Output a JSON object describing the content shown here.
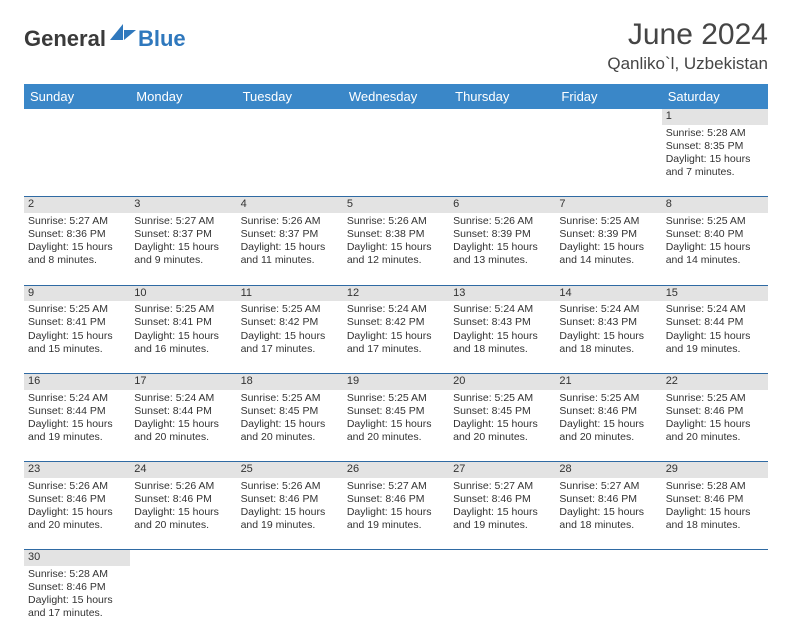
{
  "logo": {
    "text1": "General",
    "text2": "Blue",
    "text1_color": "#3a3a3a",
    "text2_color": "#2f78bd",
    "shape_color": "#2f78bd"
  },
  "header": {
    "month": "June 2024",
    "location": "Qanliko`l, Uzbekistan"
  },
  "colors": {
    "header_bg": "#3a87c8",
    "header_text": "#ffffff",
    "daynum_bg": "#e3e3e3",
    "row_divider": "#2f6aa3",
    "body_text": "#333333"
  },
  "calendar": {
    "weekdays": [
      "Sunday",
      "Monday",
      "Tuesday",
      "Wednesday",
      "Thursday",
      "Friday",
      "Saturday"
    ],
    "weeks": [
      {
        "nums": [
          "",
          "",
          "",
          "",
          "",
          "",
          "1"
        ],
        "cells": [
          [],
          [],
          [],
          [],
          [],
          [],
          [
            "Sunrise: 5:28 AM",
            "Sunset: 8:35 PM",
            "Daylight: 15 hours",
            "and 7 minutes."
          ]
        ]
      },
      {
        "nums": [
          "2",
          "3",
          "4",
          "5",
          "6",
          "7",
          "8"
        ],
        "cells": [
          [
            "Sunrise: 5:27 AM",
            "Sunset: 8:36 PM",
            "Daylight: 15 hours",
            "and 8 minutes."
          ],
          [
            "Sunrise: 5:27 AM",
            "Sunset: 8:37 PM",
            "Daylight: 15 hours",
            "and 9 minutes."
          ],
          [
            "Sunrise: 5:26 AM",
            "Sunset: 8:37 PM",
            "Daylight: 15 hours",
            "and 11 minutes."
          ],
          [
            "Sunrise: 5:26 AM",
            "Sunset: 8:38 PM",
            "Daylight: 15 hours",
            "and 12 minutes."
          ],
          [
            "Sunrise: 5:26 AM",
            "Sunset: 8:39 PM",
            "Daylight: 15 hours",
            "and 13 minutes."
          ],
          [
            "Sunrise: 5:25 AM",
            "Sunset: 8:39 PM",
            "Daylight: 15 hours",
            "and 14 minutes."
          ],
          [
            "Sunrise: 5:25 AM",
            "Sunset: 8:40 PM",
            "Daylight: 15 hours",
            "and 14 minutes."
          ]
        ]
      },
      {
        "nums": [
          "9",
          "10",
          "11",
          "12",
          "13",
          "14",
          "15"
        ],
        "cells": [
          [
            "Sunrise: 5:25 AM",
            "Sunset: 8:41 PM",
            "Daylight: 15 hours",
            "and 15 minutes."
          ],
          [
            "Sunrise: 5:25 AM",
            "Sunset: 8:41 PM",
            "Daylight: 15 hours",
            "and 16 minutes."
          ],
          [
            "Sunrise: 5:25 AM",
            "Sunset: 8:42 PM",
            "Daylight: 15 hours",
            "and 17 minutes."
          ],
          [
            "Sunrise: 5:24 AM",
            "Sunset: 8:42 PM",
            "Daylight: 15 hours",
            "and 17 minutes."
          ],
          [
            "Sunrise: 5:24 AM",
            "Sunset: 8:43 PM",
            "Daylight: 15 hours",
            "and 18 minutes."
          ],
          [
            "Sunrise: 5:24 AM",
            "Sunset: 8:43 PM",
            "Daylight: 15 hours",
            "and 18 minutes."
          ],
          [
            "Sunrise: 5:24 AM",
            "Sunset: 8:44 PM",
            "Daylight: 15 hours",
            "and 19 minutes."
          ]
        ]
      },
      {
        "nums": [
          "16",
          "17",
          "18",
          "19",
          "20",
          "21",
          "22"
        ],
        "cells": [
          [
            "Sunrise: 5:24 AM",
            "Sunset: 8:44 PM",
            "Daylight: 15 hours",
            "and 19 minutes."
          ],
          [
            "Sunrise: 5:24 AM",
            "Sunset: 8:44 PM",
            "Daylight: 15 hours",
            "and 20 minutes."
          ],
          [
            "Sunrise: 5:25 AM",
            "Sunset: 8:45 PM",
            "Daylight: 15 hours",
            "and 20 minutes."
          ],
          [
            "Sunrise: 5:25 AM",
            "Sunset: 8:45 PM",
            "Daylight: 15 hours",
            "and 20 minutes."
          ],
          [
            "Sunrise: 5:25 AM",
            "Sunset: 8:45 PM",
            "Daylight: 15 hours",
            "and 20 minutes."
          ],
          [
            "Sunrise: 5:25 AM",
            "Sunset: 8:46 PM",
            "Daylight: 15 hours",
            "and 20 minutes."
          ],
          [
            "Sunrise: 5:25 AM",
            "Sunset: 8:46 PM",
            "Daylight: 15 hours",
            "and 20 minutes."
          ]
        ]
      },
      {
        "nums": [
          "23",
          "24",
          "25",
          "26",
          "27",
          "28",
          "29"
        ],
        "cells": [
          [
            "Sunrise: 5:26 AM",
            "Sunset: 8:46 PM",
            "Daylight: 15 hours",
            "and 20 minutes."
          ],
          [
            "Sunrise: 5:26 AM",
            "Sunset: 8:46 PM",
            "Daylight: 15 hours",
            "and 20 minutes."
          ],
          [
            "Sunrise: 5:26 AM",
            "Sunset: 8:46 PM",
            "Daylight: 15 hours",
            "and 19 minutes."
          ],
          [
            "Sunrise: 5:27 AM",
            "Sunset: 8:46 PM",
            "Daylight: 15 hours",
            "and 19 minutes."
          ],
          [
            "Sunrise: 5:27 AM",
            "Sunset: 8:46 PM",
            "Daylight: 15 hours",
            "and 19 minutes."
          ],
          [
            "Sunrise: 5:27 AM",
            "Sunset: 8:46 PM",
            "Daylight: 15 hours",
            "and 18 minutes."
          ],
          [
            "Sunrise: 5:28 AM",
            "Sunset: 8:46 PM",
            "Daylight: 15 hours",
            "and 18 minutes."
          ]
        ]
      },
      {
        "nums": [
          "30",
          "",
          "",
          "",
          "",
          "",
          ""
        ],
        "cells": [
          [
            "Sunrise: 5:28 AM",
            "Sunset: 8:46 PM",
            "Daylight: 15 hours",
            "and 17 minutes."
          ],
          [],
          [],
          [],
          [],
          [],
          []
        ]
      }
    ]
  }
}
